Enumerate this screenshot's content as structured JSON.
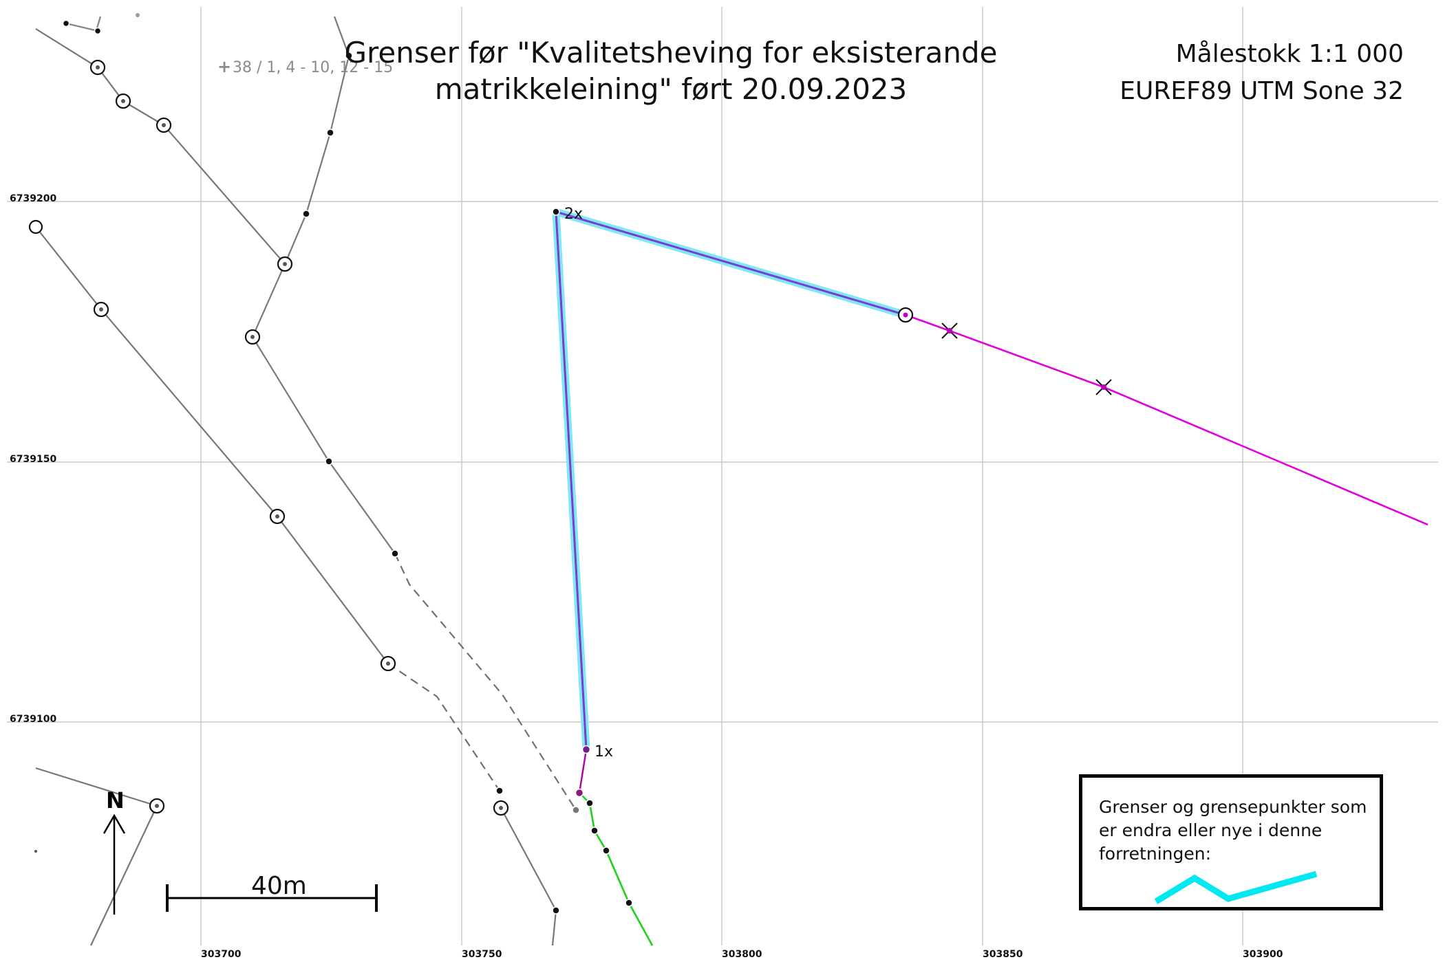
{
  "map": {
    "title_line1": "Grenser før \"Kvalitetsheving for eksisterande",
    "title_line2": "matrikkeleining\" ført 20.09.2023",
    "scale": "Målestokk 1:1 000",
    "crs": "EUREF89 UTM Sone 32",
    "parcel_label": "38 / 1, 4 - 10, 12 - 15",
    "northings": [
      "6739200",
      "6739150",
      "6739100"
    ],
    "eastings": [
      "303700",
      "303750",
      "303800",
      "303850",
      "303900"
    ],
    "point_labels": {
      "top": "2x",
      "bottom": "1x"
    },
    "north_arrow_label": "N",
    "scale_bar_label": "40m",
    "legend": {
      "text": "Grenser og grensepunkter som er endra eller nye i denne forretningen:",
      "sample_color": "#00e8f0"
    },
    "colors": {
      "existing_boundary": "#6f7a73",
      "changed_boundary_fill": "#8a2be2",
      "changed_highlight": "#00e8f0",
      "magenta_boundary": "#e000e0",
      "green_boundary": "#19d419"
    }
  }
}
